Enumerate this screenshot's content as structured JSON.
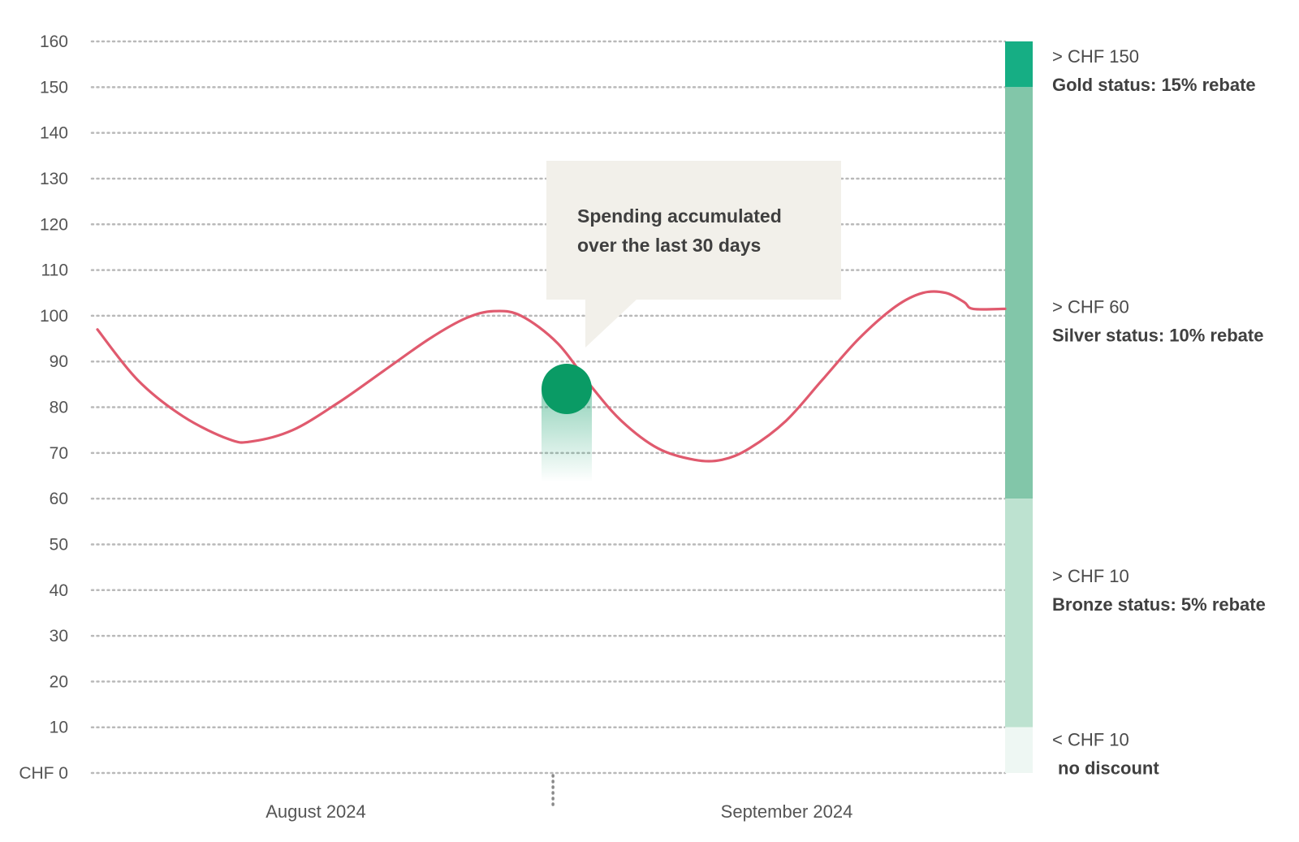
{
  "chart_data": {
    "type": "line",
    "y_ticks": [
      "CHF 0",
      "10",
      "20",
      "30",
      "40",
      "50",
      "60",
      "70",
      "80",
      "90",
      "100",
      "110",
      "120",
      "130",
      "140",
      "150",
      "160"
    ],
    "ylim": [
      0,
      160
    ],
    "x_ticks": [
      "August 2024",
      "September 2024"
    ],
    "grid": true,
    "series": [
      {
        "color": "#e05a6e",
        "points": [
          [
            0.0,
            97
          ],
          [
            0.05,
            86
          ],
          [
            0.1,
            78
          ],
          [
            0.15,
            73
          ],
          [
            0.175,
            72.5
          ],
          [
            0.22,
            75
          ],
          [
            0.27,
            81
          ],
          [
            0.32,
            88
          ],
          [
            0.37,
            95
          ],
          [
            0.41,
            99.5
          ],
          [
            0.44,
            101
          ],
          [
            0.47,
            100
          ],
          [
            0.51,
            94
          ],
          [
            0.545,
            85
          ],
          [
            0.58,
            77
          ],
          [
            0.62,
            71
          ],
          [
            0.66,
            68.5
          ],
          [
            0.69,
            68.5
          ],
          [
            0.72,
            71
          ],
          [
            0.76,
            77
          ],
          [
            0.8,
            86
          ],
          [
            0.84,
            95
          ],
          [
            0.88,
            102
          ],
          [
            0.91,
            105
          ],
          [
            0.935,
            105
          ],
          [
            0.955,
            103
          ],
          [
            0.965,
            101.5
          ],
          [
            1.0,
            101.5
          ]
        ]
      }
    ],
    "marker": {
      "x": 0.52,
      "y": 84,
      "color": "#0a9b65"
    },
    "divider_x": 0.505,
    "tiers": [
      {
        "from": 150,
        "to": 160,
        "color": "#16ae84",
        "threshold": "> CHF 150",
        "label": "Gold status: 15% rebate"
      },
      {
        "from": 60,
        "to": 150,
        "color": "#82c6a9",
        "threshold": "> CHF 60",
        "label": "Silver status: 10% rebate"
      },
      {
        "from": 10,
        "to": 60,
        "color": "#bde2d0",
        "threshold": "> CHF 10",
        "label": "Bronze status: 5% rebate"
      },
      {
        "from": 0,
        "to": 10,
        "color": "#eef7f3",
        "threshold": "< CHF 10",
        "label": "no discount"
      }
    ],
    "annotation": "Spending accumulated over the last 30 days"
  },
  "callout": {
    "line1": "Spending accumulated",
    "line2": "over the last 30 days"
  }
}
